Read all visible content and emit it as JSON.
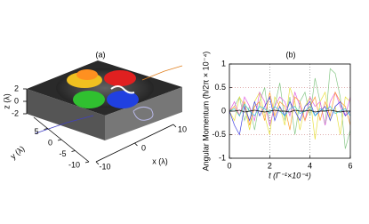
{
  "chart_data": [
    {
      "type": "surface3d",
      "title": "(a)",
      "xlabel": "x (λ)",
      "ylabel": "y (λ)",
      "zlabel": "z (λ)",
      "xlim": [
        -10,
        10
      ],
      "xticks": [
        -10,
        0,
        10
      ],
      "ylim": [
        -10,
        10
      ],
      "yticks": [
        -10,
        -5,
        0,
        5
      ],
      "zlim": [
        -2,
        2
      ],
      "zticks": [
        -2,
        0,
        2
      ]
    },
    {
      "type": "line",
      "title": "(b)",
      "xlabel": "t (Γ⁻¹×10⁻⁴)",
      "ylabel": "Angular Momentum (ħ/2π × 10⁻⁴)",
      "x": [
        0,
        0.25,
        0.5,
        0.75,
        1,
        1.25,
        1.5,
        1.75,
        2,
        2.25,
        2.5,
        2.75,
        3,
        3.25,
        3.5,
        3.75,
        4,
        4.25,
        4.5,
        4.75,
        5,
        5.25,
        5.5,
        5.75,
        6
      ],
      "xlim": [
        0,
        6
      ],
      "xticks": [
        0,
        2,
        4,
        6
      ],
      "ylim": [
        -1,
        1
      ],
      "yticks": [
        -1,
        -0.5,
        0,
        0.5,
        1
      ],
      "grid": true,
      "series": [
        {
          "color": "#88c888",
          "values": [
            0,
            0.1,
            0.3,
            -0.2,
            0.1,
            -0.4,
            0.2,
            0.5,
            -0.3,
            0.1,
            0.6,
            -0.2,
            0.3,
            -0.5,
            0.2,
            0.4,
            -0.1,
            0.7,
            0.2,
            -0.3,
            0.9,
            0.8,
            0.3,
            -0.8,
            -0.4
          ]
        },
        {
          "color": "#e8e040",
          "values": [
            0,
            -0.2,
            0.3,
            0.1,
            -0.4,
            0.2,
            0.4,
            -0.1,
            -0.5,
            0.3,
            0.1,
            -0.3,
            0.5,
            0.2,
            -0.4,
            0.1,
            0.3,
            -0.6,
            0.2,
            0.4,
            -0.2,
            0.1,
            -0.5,
            0.3,
            0.2
          ]
        },
        {
          "color": "#e060e0",
          "values": [
            0,
            0.2,
            -0.1,
            0.3,
            0.1,
            -0.2,
            0.4,
            0.2,
            -0.3,
            0.1,
            0.3,
            0.2,
            -0.1,
            0.4,
            0.1,
            -0.2,
            0.3,
            0.1,
            0.2,
            -0.3,
            0.2,
            0.4,
            0.1,
            -0.1,
            0.3
          ]
        },
        {
          "color": "#ff9a30",
          "values": [
            0,
            0.1,
            -0.1,
            0.2,
            -0.3,
            0.1,
            0.2,
            -0.2,
            0.4,
            -0.1,
            0.2,
            0.1,
            -0.4,
            0.3,
            0.2,
            -0.2,
            0.1,
            0.3,
            -0.2,
            0.2,
            -0.1,
            0.4,
            0.2,
            0.1,
            -0.3
          ]
        },
        {
          "color": "#4040e0",
          "values": [
            0,
            -0.3,
            -0.5,
            0.1,
            -0.2,
            0.2,
            -0.1,
            0.1,
            0.3,
            -0.2,
            0.1,
            -0.1,
            0.2,
            0,
            -0.2,
            0.1,
            0.2,
            -0.1,
            0,
            0.1,
            -0.2,
            0.1,
            0.2,
            -0.1,
            0
          ]
        },
        {
          "color": "#30c8d8",
          "values": [
            0,
            0.05,
            -0.1,
            0.15,
            0,
            -0.1,
            0.1,
            0.05,
            -0.05,
            0.1,
            0,
            -0.1,
            0.05,
            0.1,
            -0.05,
            0,
            0.1,
            -0.1,
            0.05,
            0,
            0.1,
            -0.05,
            0,
            0.05,
            -0.1
          ]
        },
        {
          "color": "#000000",
          "values": [
            0,
            0,
            0.02,
            -0.02,
            0,
            0.02,
            0,
            -0.02,
            0,
            0.02,
            0,
            0,
            -0.02,
            0.02,
            0,
            0,
            0.02,
            -0.02,
            0,
            0,
            0.02,
            0,
            -0.02,
            0,
            0
          ]
        }
      ]
    }
  ]
}
